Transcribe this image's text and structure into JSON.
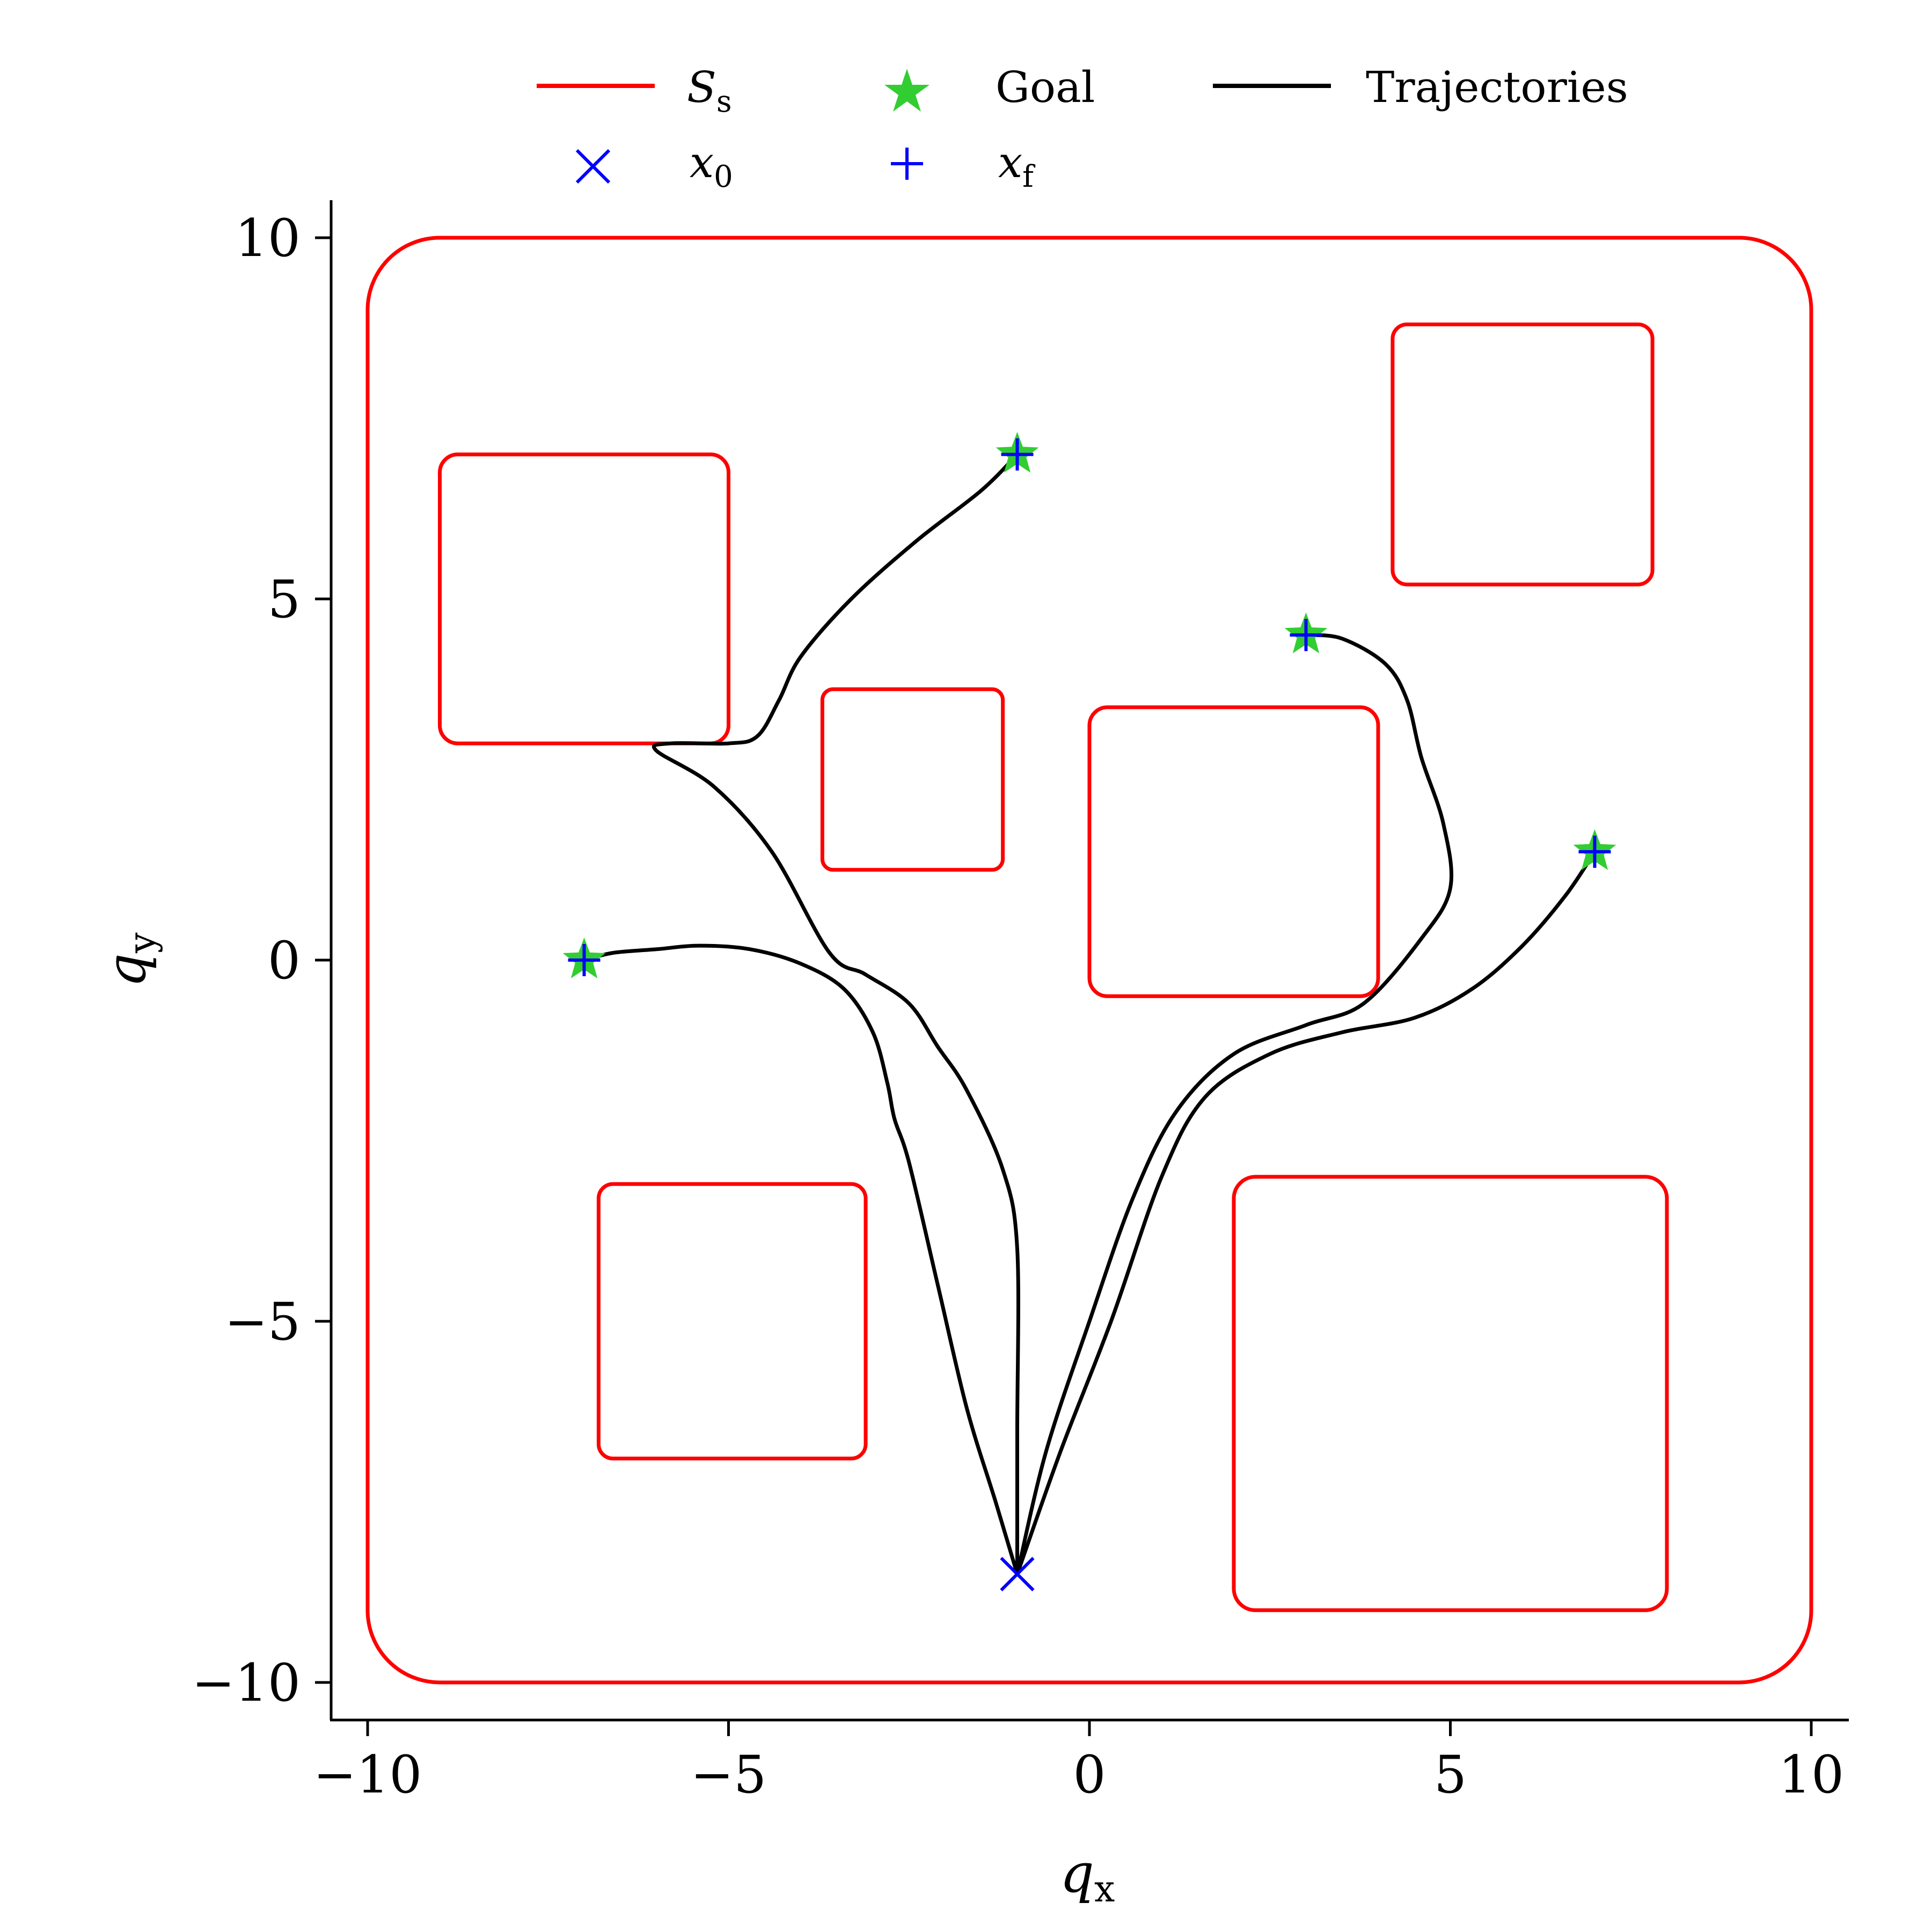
{
  "chart_data": {
    "type": "line",
    "title": "",
    "xlabel": "q",
    "xlabel_sub": "x",
    "ylabel": "q",
    "ylabel_sub": "y",
    "xlim": [
      -10.5,
      10.5
    ],
    "ylim": [
      -10.5,
      10.5
    ],
    "xticks": [
      -10,
      -5,
      0,
      5,
      10
    ],
    "yticks": [
      -10,
      -5,
      0,
      5,
      10
    ],
    "xtick_labels": [
      "−10",
      "−5",
      "0",
      "5",
      "10"
    ],
    "ytick_labels": [
      "−10",
      "−5",
      "0",
      "5",
      "10"
    ],
    "grid": false,
    "legend": {
      "placement": "top-center",
      "entries": [
        {
          "label": "S",
          "sub": "s",
          "kind": "line",
          "color": "#ff0000",
          "math": true
        },
        {
          "label": "Goal",
          "kind": "star",
          "color": "#32cd32"
        },
        {
          "label": "Trajectories",
          "kind": "line",
          "color": "#000000"
        },
        {
          "label": "x",
          "sub": "0",
          "kind": "x-marker",
          "color": "#0000ff",
          "math": true
        },
        {
          "label": "x",
          "sub": "f",
          "kind": "plus-marker",
          "color": "#0000ff",
          "math": true
        }
      ]
    },
    "colors": {
      "safe_set": "#ff0000",
      "goal": "#32cd32",
      "trajectory": "#000000",
      "markers": "#0000ff"
    },
    "safe_set": {
      "outer": {
        "x0": -10,
        "x1": 10,
        "y0": -10,
        "y1": 10,
        "corner": 1.0
      },
      "obstacles": [
        {
          "x0": -9.0,
          "x1": -5.0,
          "y0": 3.0,
          "y1": 7.0,
          "corner": 0.25
        },
        {
          "x0": -3.7,
          "x1": -1.2,
          "y0": 1.25,
          "y1": 3.75,
          "corner": 0.15
        },
        {
          "x0": 0.0,
          "x1": 4.0,
          "y0": -0.5,
          "y1": 3.5,
          "corner": 0.25
        },
        {
          "x0": 4.2,
          "x1": 7.8,
          "y0": 5.2,
          "y1": 8.8,
          "corner": 0.2
        },
        {
          "x0": -6.8,
          "x1": -3.1,
          "y0": -6.9,
          "y1": -3.1,
          "corner": 0.2
        },
        {
          "x0": 2.0,
          "x1": 8.0,
          "y0": -9.0,
          "y1": -3.0,
          "corner": 0.3
        }
      ]
    },
    "start": {
      "x": -1,
      "y": -8.5
    },
    "goals": [
      {
        "x": -7,
        "y": 0
      },
      {
        "x": -1,
        "y": 7
      },
      {
        "x": 3,
        "y": 4.5
      },
      {
        "x": 7,
        "y": 1.5
      }
    ],
    "finals": [
      {
        "x": -7,
        "y": 0
      },
      {
        "x": -1,
        "y": 7
      },
      {
        "x": 3,
        "y": 4.5
      },
      {
        "x": 7,
        "y": 1.5
      }
    ],
    "series": [
      {
        "x": [
          -1,
          -1.3,
          -1.7,
          -2.1,
          -2.5,
          -2.7,
          -2.8,
          -3.0,
          -3.4,
          -4.0,
          -4.7,
          -5.4,
          -6.0,
          -6.6,
          -7.0
        ],
        "y": [
          -8.5,
          -7.5,
          -6.2,
          -4.5,
          -2.8,
          -2.2,
          -1.7,
          -1.0,
          -0.4,
          -0.05,
          0.15,
          0.2,
          0.15,
          0.1,
          0.0
        ]
      },
      {
        "x": [
          -1,
          -1,
          -1,
          -1.2,
          -1.7,
          -2.1,
          -2.5,
          -3.1,
          -3.6,
          -4.4,
          -5.2,
          -6.0,
          -5.8,
          -5.0,
          -4.6,
          -4.3,
          -4.0,
          -3.3,
          -2.4,
          -1.5,
          -1.0
        ],
        "y": [
          -8.5,
          -6.5,
          -4.0,
          -2.9,
          -1.8,
          -1.2,
          -0.6,
          -0.2,
          0.1,
          1.5,
          2.4,
          2.9,
          3.0,
          3.0,
          3.1,
          3.6,
          4.2,
          5.0,
          5.8,
          6.5,
          7.0
        ]
      },
      {
        "x": [
          -1,
          -0.6,
          0,
          0.6,
          1.2,
          2.0,
          3.0,
          3.8,
          4.6,
          5.0,
          4.9,
          4.6,
          4.4,
          4.1,
          3.5,
          3.0
        ],
        "y": [
          -8.5,
          -6.8,
          -5.0,
          -3.3,
          -2.1,
          -1.3,
          -0.9,
          -0.6,
          0.3,
          1.0,
          1.9,
          2.8,
          3.6,
          4.1,
          4.45,
          4.5
        ]
      },
      {
        "x": [
          -1,
          -0.4,
          0.3,
          1.0,
          1.6,
          2.5,
          3.5,
          4.5,
          5.3,
          6.0,
          6.6,
          7.0
        ],
        "y": [
          -8.5,
          -6.8,
          -5.0,
          -3.0,
          -1.9,
          -1.3,
          -1.0,
          -0.8,
          -0.4,
          0.2,
          0.9,
          1.5
        ]
      }
    ]
  }
}
